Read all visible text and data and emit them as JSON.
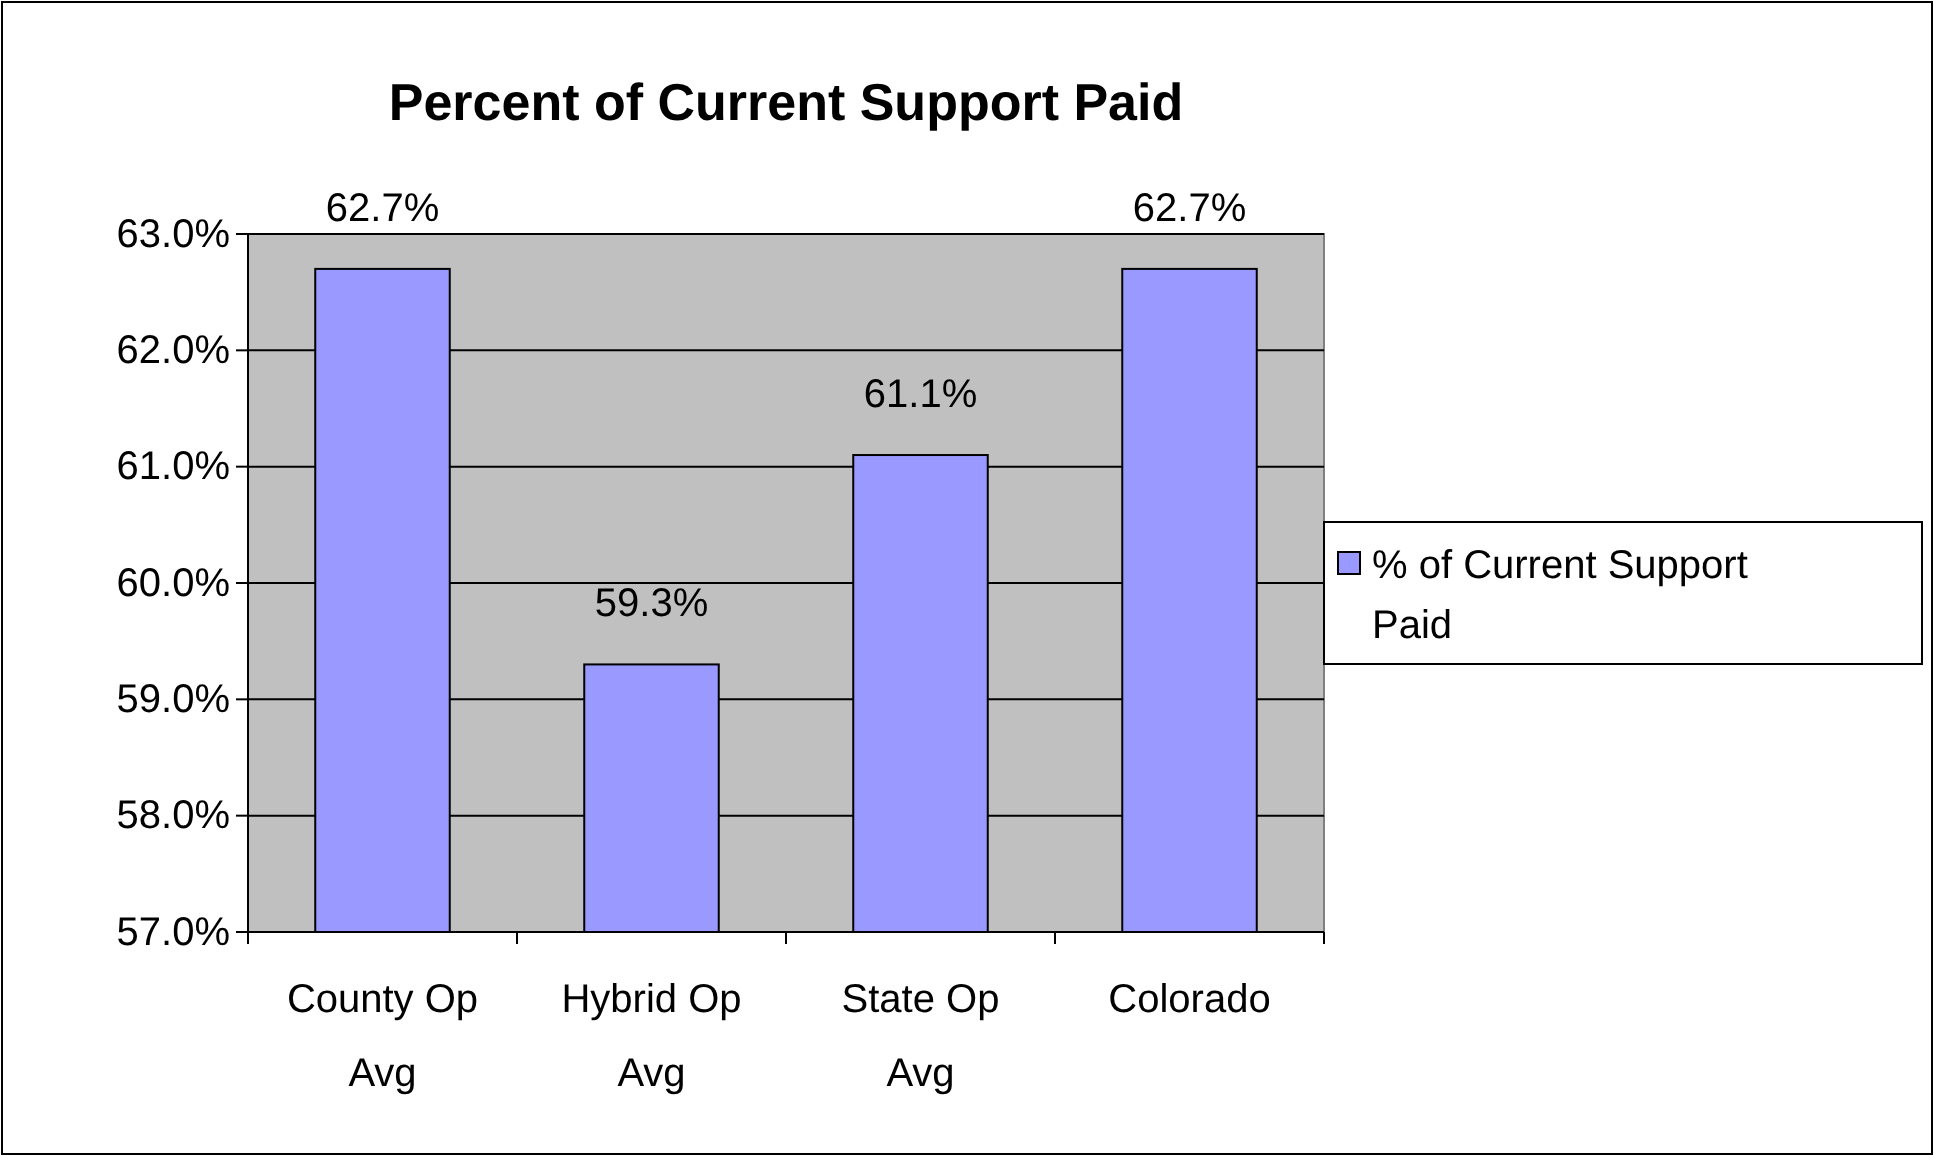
{
  "chart_data": {
    "type": "bar",
    "title": "Percent of Current Support Paid",
    "categories": [
      "County Op Avg",
      "Hybrid Op Avg",
      "State Op Avg",
      "Colorado"
    ],
    "series": [
      {
        "name": "% of Current Support Paid",
        "color": "#9999ff",
        "values": [
          62.7,
          59.3,
          61.1,
          62.7
        ],
        "value_labels": [
          "62.7%",
          "59.3%",
          "61.1%",
          "62.7%"
        ]
      }
    ],
    "ylim": [
      57,
      63
    ],
    "yticks": [
      {
        "value": 57,
        "label": "57.0%"
      },
      {
        "value": 58,
        "label": "58.0%"
      },
      {
        "value": 59,
        "label": "59.0%"
      },
      {
        "value": 60,
        "label": "60.0%"
      },
      {
        "value": 61,
        "label": "61.0%"
      },
      {
        "value": 62,
        "label": "62.0%"
      },
      {
        "value": 63,
        "label": "63.0%"
      }
    ],
    "grid": "y",
    "legend": "right"
  }
}
